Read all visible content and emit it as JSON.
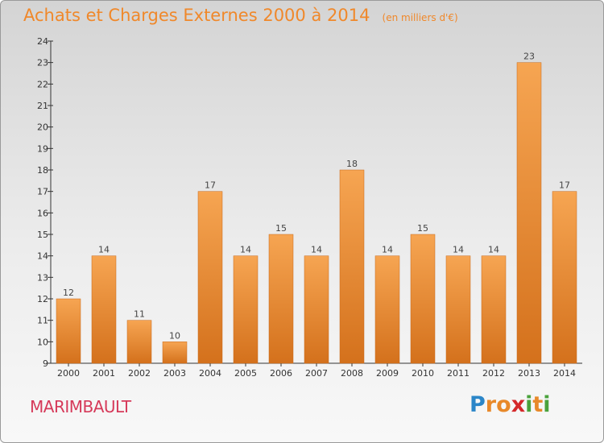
{
  "title": "Achats et Charges Externes 2000 à 2014",
  "unit": "(en milliers d'€)",
  "commune": "MARIMBAULT",
  "logo": {
    "letters": [
      "P",
      "r",
      "o",
      "x",
      "i",
      "t",
      "i"
    ],
    "colors": [
      "#2b86c8",
      "#e8892a",
      "#e8892a",
      "#d4282a",
      "#4aa23c",
      "#e8892a",
      "#4aa23c"
    ]
  },
  "colors": {
    "bar_top": "#f6a552",
    "bar_bottom": "#d4711c",
    "title": "#f0882a",
    "commune": "#d63a5a"
  },
  "chart_data": {
    "type": "bar",
    "categories": [
      "2000",
      "2001",
      "2002",
      "2003",
      "2004",
      "2005",
      "2006",
      "2007",
      "2008",
      "2009",
      "2010",
      "2011",
      "2012",
      "2013",
      "2014"
    ],
    "values": [
      12,
      14,
      11,
      10,
      17,
      14,
      15,
      14,
      18,
      14,
      15,
      14,
      14,
      23,
      17
    ],
    "ylim": [
      9,
      24
    ],
    "yticks": [
      9,
      10,
      11,
      12,
      13,
      14,
      15,
      16,
      17,
      18,
      19,
      20,
      21,
      22,
      23,
      24
    ],
    "grid": false,
    "legend": "none"
  }
}
